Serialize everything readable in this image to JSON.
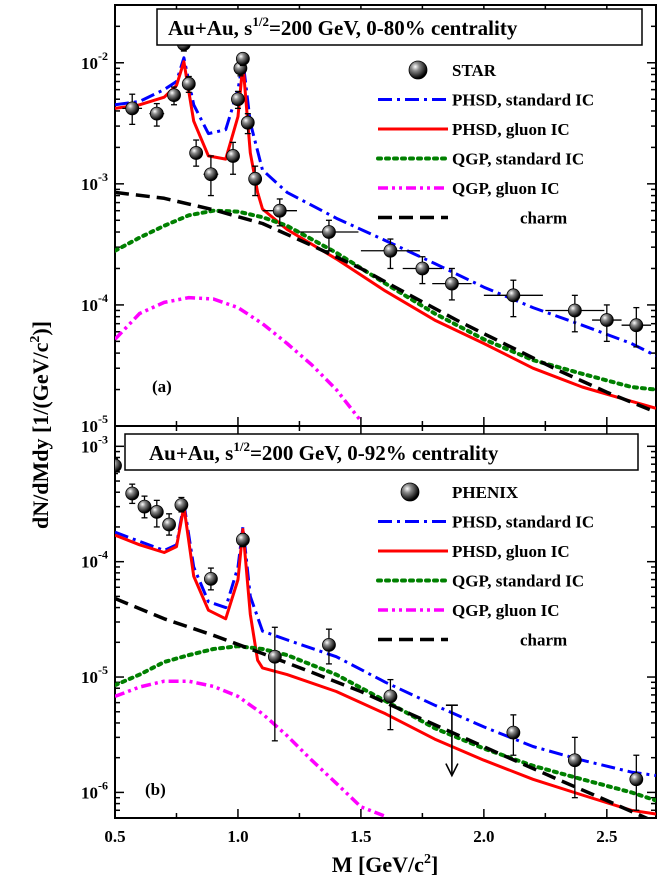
{
  "figure": {
    "ylabel_main": "dN/dMdy  [1/(GeV/c",
    "ylabel_sup": "2",
    "ylabel_tail": ")]",
    "xlabel_main": "M  [GeV/c",
    "xlabel_sup": "2",
    "xlabel_tail": "]"
  },
  "chart_data": [
    {
      "type": "line",
      "panel": "(a)",
      "title_pre": "Au+Au,  s",
      "title_sup": "1/2",
      "title_post": "=200 GeV, 0-80% centrality",
      "xlim": [
        0.5,
        2.7
      ],
      "ylim": [
        1e-05,
        0.03
      ],
      "yscale": "log",
      "x_ticks": [],
      "y_ticks": [
        {
          "v": 0.01,
          "m": "10",
          "e": "-2"
        },
        {
          "v": 0.001,
          "m": "10",
          "e": "-3"
        },
        {
          "v": 0.0001,
          "m": "10",
          "e": "-4"
        },
        {
          "v": 1e-05,
          "m": "10",
          "e": "-5"
        }
      ],
      "legend_position": "top-right",
      "series": [
        {
          "name": "PHSD, standard IC",
          "color": "#0000ff",
          "style": "dashdot",
          "x": [
            0.5,
            0.6,
            0.7,
            0.75,
            0.78,
            0.82,
            0.88,
            0.95,
            1.0,
            1.02,
            1.05,
            1.1,
            1.2,
            1.4,
            1.6,
            1.8,
            2.0,
            2.2,
            2.4,
            2.6,
            2.7
          ],
          "y": [
            0.0045,
            0.0048,
            0.006,
            0.007,
            0.011,
            0.0045,
            0.0026,
            0.0028,
            0.006,
            0.0105,
            0.0032,
            0.0013,
            0.00085,
            0.00052,
            0.00034,
            0.00022,
            0.00014,
            9.5e-05,
            6.8e-05,
            4.8e-05,
            3.8e-05
          ]
        },
        {
          "name": "PHSD, gluon IC",
          "color": "#ff0000",
          "style": "solid",
          "x": [
            0.5,
            0.6,
            0.7,
            0.75,
            0.78,
            0.82,
            0.88,
            0.95,
            1.0,
            1.02,
            1.05,
            1.08,
            1.1,
            1.2,
            1.4,
            1.6,
            1.8,
            2.0,
            2.2,
            2.4,
            2.6,
            2.7
          ],
          "y": [
            0.0042,
            0.0045,
            0.0052,
            0.0065,
            0.0102,
            0.0033,
            0.0017,
            0.0016,
            0.0036,
            0.0098,
            0.0018,
            0.00085,
            0.00062,
            0.00042,
            0.00024,
            0.00013,
            7.5e-05,
            4.8e-05,
            3e-05,
            2.1e-05,
            1.6e-05,
            1.4e-05
          ]
        },
        {
          "name": "QGP,  standard IC",
          "color": "#008000",
          "style": "dot",
          "x": [
            0.5,
            0.6,
            0.7,
            0.8,
            0.9,
            1.0,
            1.1,
            1.2,
            1.4,
            1.6,
            1.8,
            2.0,
            2.2,
            2.4,
            2.6,
            2.7
          ],
          "y": [
            0.00028,
            0.00036,
            0.00045,
            0.00055,
            0.0006,
            0.00059,
            0.00053,
            0.00045,
            0.00027,
            0.00015,
            8.5e-05,
            5.2e-05,
            3.5e-05,
            2.7e-05,
            2.1e-05,
            2e-05
          ]
        },
        {
          "name": "QGP,  gluon IC",
          "color": "#ff00ff",
          "style": "dashdotdot",
          "x": [
            0.5,
            0.6,
            0.7,
            0.8,
            0.9,
            1.0,
            1.1,
            1.2,
            1.3,
            1.4,
            1.5
          ],
          "y": [
            5.2e-05,
            8.5e-05,
            0.000105,
            0.000115,
            0.000112,
            9.5e-05,
            7e-05,
            4.8e-05,
            3.2e-05,
            2e-05,
            1.1e-05
          ]
        },
        {
          "name": "charm",
          "color": "#000000",
          "style": "dash",
          "x": [
            0.5,
            0.7,
            0.9,
            1.1,
            1.3,
            1.5,
            1.7,
            1.9,
            2.1,
            2.3,
            2.5,
            2.7
          ],
          "y": [
            0.00085,
            0.00076,
            0.00061,
            0.00047,
            0.00031,
            0.0002,
            0.00012,
            7.3e-05,
            4.6e-05,
            2.9e-05,
            1.9e-05,
            1.3e-05
          ]
        }
      ],
      "data_name": "STAR",
      "points": [
        {
          "x": 0.57,
          "y": 0.0042,
          "lo": 0.0031,
          "hi": 0.0055,
          "xe": 0.04
        },
        {
          "x": 0.67,
          "y": 0.0038,
          "lo": 0.003,
          "hi": 0.0046,
          "xe": 0.03
        },
        {
          "x": 0.74,
          "y": 0.0054,
          "lo": 0.0045,
          "hi": 0.0063,
          "xe": 0.02
        },
        {
          "x": 0.78,
          "y": 0.0143,
          "lo": 0.0125,
          "hi": 0.016,
          "xe": 0.015
        },
        {
          "x": 0.8,
          "y": 0.0067,
          "lo": 0.0057,
          "hi": 0.0077,
          "xe": 0.015
        },
        {
          "x": 0.83,
          "y": 0.0018,
          "lo": 0.0014,
          "hi": 0.0023,
          "xe": 0.02
        },
        {
          "x": 0.89,
          "y": 0.0012,
          "lo": 0.0008,
          "hi": 0.0017,
          "xe": 0.03
        },
        {
          "x": 0.98,
          "y": 0.0017,
          "lo": 0.0012,
          "hi": 0.0022,
          "xe": 0.015
        },
        {
          "x": 1.0,
          "y": 0.005,
          "lo": 0.0042,
          "hi": 0.0058,
          "xe": 0.01
        },
        {
          "x": 1.01,
          "y": 0.009,
          "lo": 0.0078,
          "hi": 0.0102,
          "xe": 0.01
        },
        {
          "x": 1.02,
          "y": 0.0108,
          "lo": 0.0095,
          "hi": 0.012,
          "xe": 0.01
        },
        {
          "x": 1.04,
          "y": 0.0032,
          "lo": 0.0026,
          "hi": 0.0038,
          "xe": 0.01
        },
        {
          "x": 1.07,
          "y": 0.0011,
          "lo": 0.0008,
          "hi": 0.0014,
          "xe": 0.02
        },
        {
          "x": 1.17,
          "y": 0.0006,
          "lo": 0.00045,
          "hi": 0.00075,
          "xe": 0.07
        },
        {
          "x": 1.37,
          "y": 0.0004,
          "lo": 0.00028,
          "hi": 0.0005,
          "xe": 0.12
        },
        {
          "x": 1.62,
          "y": 0.00028,
          "lo": 0.0002,
          "hi": 0.00035,
          "xe": 0.12
        },
        {
          "x": 1.75,
          "y": 0.0002,
          "lo": 0.00015,
          "hi": 0.00025,
          "xe": 0.08
        },
        {
          "x": 1.87,
          "y": 0.00015,
          "lo": 0.00011,
          "hi": 0.0002,
          "xe": 0.08
        },
        {
          "x": 2.12,
          "y": 0.00012,
          "lo": 8e-05,
          "hi": 0.00016,
          "xe": 0.12
        },
        {
          "x": 2.37,
          "y": 9e-05,
          "lo": 6e-05,
          "hi": 0.00012,
          "xe": 0.12
        },
        {
          "x": 2.5,
          "y": 7.5e-05,
          "lo": 5e-05,
          "hi": 0.0001,
          "xe": 0.06
        },
        {
          "x": 2.62,
          "y": 6.8e-05,
          "lo": 4.5e-05,
          "hi": 9.5e-05,
          "xe": 0.06
        }
      ]
    },
    {
      "type": "line",
      "panel": "(b)",
      "title_pre": "Au+Au,  s",
      "title_sup": "1/2",
      "title_post": "=200 GeV, 0-92% centrality",
      "xlim": [
        0.5,
        2.7
      ],
      "ylim": [
        6e-07,
        0.0015
      ],
      "yscale": "log",
      "x_ticks": [
        "0.5",
        "1.0",
        "1.5",
        "2.0",
        "2.5"
      ],
      "y_ticks": [
        {
          "v": 0.001,
          "m": "10",
          "e": "-3"
        },
        {
          "v": 0.0001,
          "m": "10",
          "e": "-4"
        },
        {
          "v": 1e-05,
          "m": "10",
          "e": "-5"
        },
        {
          "v": 1e-06,
          "m": "10",
          "e": "-6"
        }
      ],
      "legend_position": "top-right",
      "series": [
        {
          "name": "PHSD, standard IC",
          "color": "#0000ff",
          "style": "dashdot",
          "x": [
            0.5,
            0.6,
            0.7,
            0.75,
            0.78,
            0.82,
            0.88,
            0.95,
            1.0,
            1.02,
            1.05,
            1.1,
            1.2,
            1.4,
            1.6,
            1.8,
            2.0,
            2.2,
            2.4,
            2.6,
            2.7
          ],
          "y": [
            0.00018,
            0.00015,
            0.000125,
            0.00014,
            0.00032,
            9e-05,
            4.5e-05,
            4e-05,
            9e-05,
            0.0002,
            5e-05,
            2.5e-05,
            2.1e-05,
            1.5e-05,
            9e-06,
            5.7e-06,
            3.7e-06,
            2.5e-06,
            1.9e-06,
            1.5e-06,
            1.4e-06
          ]
        },
        {
          "name": "PHSD, gluon IC",
          "color": "#ff0000",
          "style": "solid",
          "x": [
            0.5,
            0.6,
            0.7,
            0.75,
            0.78,
            0.82,
            0.88,
            0.95,
            1.0,
            1.02,
            1.05,
            1.08,
            1.1,
            1.2,
            1.4,
            1.6,
            1.8,
            2.0,
            2.2,
            2.4,
            2.6,
            2.7
          ],
          "y": [
            0.00017,
            0.00014,
            0.00012,
            0.000135,
            0.0003,
            7.5e-05,
            3.8e-05,
            3.2e-05,
            7e-05,
            0.00019,
            3.5e-05,
            1.4e-05,
            1.2e-05,
            1.05e-05,
            7.5e-06,
            4.8e-06,
            2.9e-06,
            1.9e-06,
            1.3e-06,
            9.5e-07,
            7e-07,
            6.5e-07
          ]
        },
        {
          "name": "QGP,  standard IC",
          "color": "#008000",
          "style": "dot",
          "x": [
            0.5,
            0.6,
            0.7,
            0.8,
            0.9,
            1.0,
            1.1,
            1.2,
            1.4,
            1.6,
            1.8,
            2.0,
            2.2,
            2.4,
            2.6,
            2.7
          ],
          "y": [
            8.5e-06,
            1.05e-05,
            1.35e-05,
            1.55e-05,
            1.75e-05,
            1.85e-05,
            1.75e-05,
            1.55e-05,
            1.05e-05,
            6.2e-06,
            3.6e-06,
            2.4e-06,
            1.7e-06,
            1.3e-06,
            1e-06,
            8.5e-07
          ]
        },
        {
          "name": "QGP,  gluon IC",
          "color": "#ff00ff",
          "style": "dashdotdot",
          "x": [
            0.5,
            0.6,
            0.7,
            0.8,
            0.9,
            1.0,
            1.1,
            1.2,
            1.3,
            1.4,
            1.5,
            1.6
          ],
          "y": [
            6.8e-06,
            8.2e-06,
            9.2e-06,
            9.2e-06,
            8.3e-06,
            6.8e-06,
            4.8e-06,
            3.1e-06,
            1.9e-06,
            1.2e-06,
            7.5e-07,
            6.2e-07
          ]
        },
        {
          "name": "charm",
          "color": "#000000",
          "style": "dash",
          "x": [
            0.5,
            0.7,
            0.9,
            1.1,
            1.3,
            1.5,
            1.7,
            1.9,
            2.1,
            2.3,
            2.5,
            2.7
          ],
          "y": [
            4.8e-05,
            3.2e-05,
            2.3e-05,
            1.6e-05,
            1.1e-05,
            7.5e-06,
            4.8e-06,
            3.1e-06,
            2e-06,
            1.3e-06,
            8.5e-07,
            5.5e-07
          ]
        }
      ],
      "data_name": "PHENIX",
      "points": [
        {
          "x": 0.5,
          "y": 0.00068,
          "lo": 0.00058,
          "hi": 0.00078,
          "xe": 0
        },
        {
          "x": 0.57,
          "y": 0.00039,
          "lo": 0.00032,
          "hi": 0.00047,
          "xe": 0
        },
        {
          "x": 0.62,
          "y": 0.0003,
          "lo": 0.00024,
          "hi": 0.00037,
          "xe": 0
        },
        {
          "x": 0.67,
          "y": 0.00027,
          "lo": 0.0002,
          "hi": 0.00034,
          "xe": 0
        },
        {
          "x": 0.72,
          "y": 0.00021,
          "lo": 0.00017,
          "hi": 0.00026,
          "xe": 0
        },
        {
          "x": 0.77,
          "y": 0.00031,
          "lo": 0.00027,
          "hi": 0.00036,
          "xe": 0
        },
        {
          "x": 0.89,
          "y": 7.1e-05,
          "lo": 5.7e-05,
          "hi": 8.8e-05,
          "xe": 0
        },
        {
          "x": 1.02,
          "y": 0.000155,
          "lo": 0.000135,
          "hi": 0.000175,
          "xe": 0
        },
        {
          "x": 1.15,
          "y": 1.5e-05,
          "lo": 2.8e-06,
          "hi": 2.7e-05,
          "xe": 0
        },
        {
          "x": 1.37,
          "y": 1.9e-05,
          "lo": 1.3e-05,
          "hi": 2.6e-05,
          "xe": 0
        },
        {
          "x": 1.62,
          "y": 6.8e-06,
          "lo": 3.5e-06,
          "hi": 9.5e-06,
          "xe": 0
        },
        {
          "x": 2.12,
          "y": 3.3e-06,
          "lo": 2.1e-06,
          "hi": 4.7e-06,
          "xe": 0
        },
        {
          "x": 2.37,
          "y": 1.9e-06,
          "lo": 9e-07,
          "hi": 3e-06,
          "xe": 0
        },
        {
          "x": 2.62,
          "y": 1.3e-06,
          "lo": 7e-07,
          "hi": 2.1e-06,
          "xe": 0
        }
      ],
      "upper_limit": {
        "x": 1.87,
        "y": 5.7e-06,
        "arrow_to": 1.4e-06
      }
    }
  ]
}
